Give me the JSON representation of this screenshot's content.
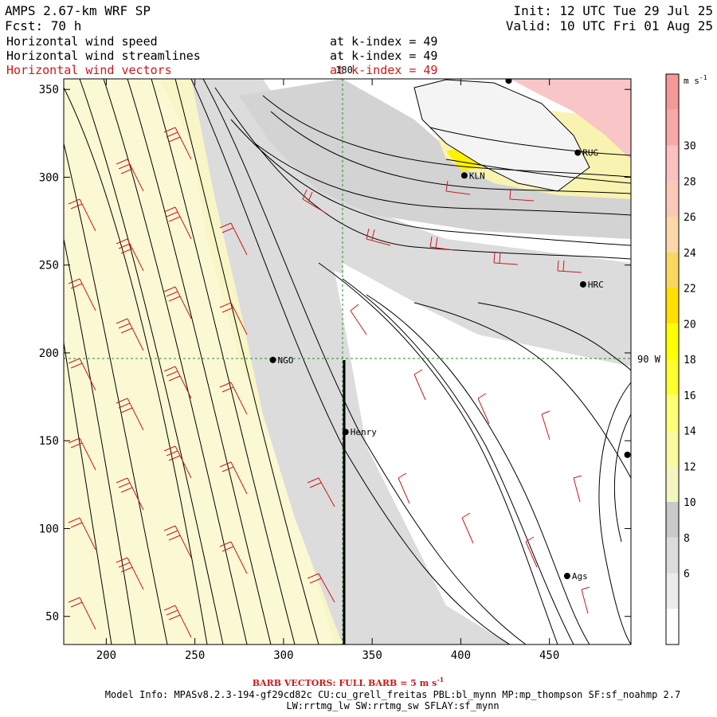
{
  "header": {
    "model": "AMPS 2.67-km WRF SP",
    "init": "Init: 12 UTC Tue 29 Jul 25",
    "fcst": "Fcst:   70 h",
    "valid": "Valid: 10 UTC Fri 01 Aug 25",
    "fields": [
      {
        "label": "Horizontal wind speed",
        "level": "at k-index =  49",
        "color": "#000000"
      },
      {
        "label": "Horizontal wind streamlines",
        "level": "at k-index =  49",
        "color": "#000000"
      },
      {
        "label": "Horizontal wind vectors",
        "level": "at k-index =  49",
        "color": "#d01818"
      }
    ]
  },
  "map": {
    "x_ticks": [
      "200",
      "250",
      "300",
      "350",
      "400",
      "450"
    ],
    "y_ticks": [
      "350",
      "300",
      "250",
      "200",
      "150",
      "100",
      "50"
    ],
    "x_range": [
      176,
      496
    ],
    "y_range": [
      34,
      356
    ],
    "grid_labels": {
      "meridian": "180",
      "parallel": "90 W"
    },
    "stations": [
      {
        "name": "KLN",
        "x": 402,
        "y": 301
      },
      {
        "name": "RUG",
        "x": 466,
        "y": 314
      },
      {
        "name": "HRC",
        "x": 469,
        "y": 239
      },
      {
        "name": "NGO",
        "x": 294,
        "y": 196
      },
      {
        "name": "Henry",
        "x": 335,
        "y": 155
      },
      {
        "name": "Ags",
        "x": 460,
        "y": 73
      },
      {
        "name": "",
        "x": 427,
        "y": 355
      },
      {
        "name": "",
        "x": 494,
        "y": 142
      }
    ]
  },
  "colorbar": {
    "unit": "m s",
    "unit_exp": "-1",
    "labels": [
      "30",
      "28",
      "26",
      "24",
      "22",
      "20",
      "18",
      "16",
      "14",
      "12",
      "10",
      "8",
      "6"
    ],
    "colors": [
      "#ffffff",
      "#ececec",
      "#dcdcdc",
      "#cacaca",
      "#f5f5c0",
      "#fafaa0",
      "#ffff78",
      "#ffff30",
      "#ffff00",
      "#ffe000",
      "#f8d860",
      "#fcd8a8",
      "#fcc8b8",
      "#fbc0c0",
      "#f8a8a8",
      "#f59898"
    ]
  },
  "footer": {
    "barb_note": "BARB VECTORS:  FULL BARB = 5 m s",
    "barb_exp": "-1",
    "model_info": "Model Info: MPASv8.2.3-194-gf29cd82c CU:cu_grell_freitas PBL:bl_mynn MP:mp_thompson SF:sf_noahmp 2.7",
    "model_info2": "LW:rrtmg_lw SW:rrtmg_sw SFLAY:sf_mynn"
  }
}
